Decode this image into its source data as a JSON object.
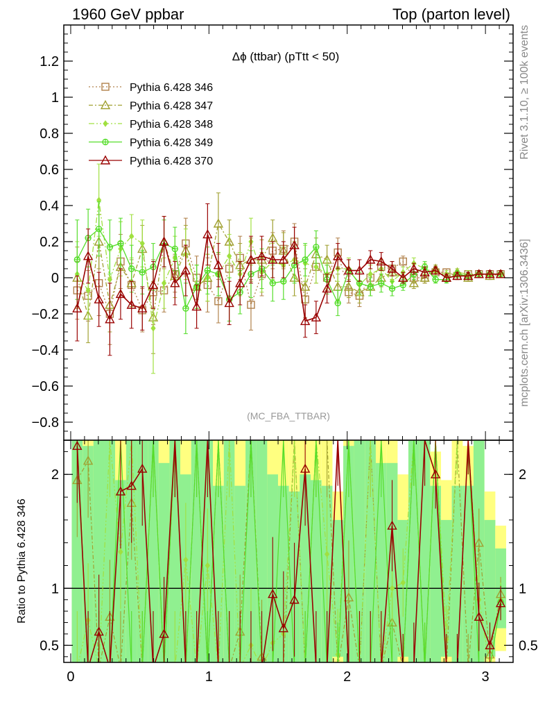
{
  "header": {
    "left": "1960 GeV ppbar",
    "right": "Top (parton level)"
  },
  "side_labels": {
    "rivet": "Rivet 3.1.10, ≥ 100k events",
    "mcplots": "mcplots.cern.ch [arXiv:1306.3436]"
  },
  "analysis_tag": "(MC_FBA_TTBAR)",
  "chart_data": [
    {
      "type": "line",
      "title": "Δϕ (ttbar) (pTtt < 50)",
      "xlim": [
        -0.05,
        3.2
      ],
      "ylim": [
        -0.9,
        1.4
      ],
      "yticks": [
        -0.8,
        -0.6,
        -0.4,
        -0.2,
        0,
        0.2,
        0.4,
        0.6,
        0.8,
        1,
        1.2
      ],
      "ytick_labels": [
        "−0.8",
        "−0.6",
        "−0.4",
        "−0.2",
        "0",
        "0.2",
        "0.4",
        "0.6",
        "0.8",
        "1",
        "1.2"
      ],
      "legend_placement": "top-left",
      "x": [
        0.047,
        0.126,
        0.204,
        0.283,
        0.361,
        0.44,
        0.518,
        0.597,
        0.675,
        0.754,
        0.832,
        0.911,
        0.99,
        1.068,
        1.147,
        1.225,
        1.304,
        1.382,
        1.461,
        1.539,
        1.618,
        1.696,
        1.775,
        1.854,
        1.932,
        2.011,
        2.089,
        2.168,
        2.246,
        2.325,
        2.404,
        2.482,
        2.561,
        2.639,
        2.718,
        2.796,
        2.875,
        2.953,
        3.032,
        3.11
      ],
      "series": [
        {
          "name": "Pythia 6.428 346",
          "color": "#b0804a",
          "marker": "square-open",
          "values": [
            -0.07,
            -0.1,
            -0.03,
            -0.2,
            0.09,
            -0.04,
            -0.18,
            -0.08,
            -0.07,
            0.02,
            0.19,
            0.0,
            -0.04,
            -0.13,
            0.05,
            0.11,
            -0.15,
            0.02,
            0.15,
            0.16,
            0.2,
            -0.12,
            0.06,
            0.0,
            0.14,
            -0.08,
            -0.1,
            0.0,
            0.06,
            0.05,
            0.09,
            0.0,
            0.0,
            0.03,
            0.03,
            0.01,
            0.02,
            0.02,
            0.02,
            0.02
          ],
          "err": [
            0.16,
            0.14,
            0.18,
            0.17,
            0.15,
            0.12,
            0.12,
            0.18,
            0.12,
            0.1,
            0.14,
            0.12,
            0.15,
            0.12,
            0.15,
            0.12,
            0.14,
            0.12,
            0.1,
            0.1,
            0.1,
            0.1,
            0.09,
            0.07,
            0.08,
            0.06,
            0.06,
            0.05,
            0.04,
            0.04,
            0.03,
            0.03,
            0.03,
            0.02,
            0.02,
            0.02,
            0.02,
            0.02,
            0.02,
            0.02
          ]
        },
        {
          "name": "Pythia 6.428 347",
          "color": "#a0a030",
          "marker": "triangle-open",
          "values": [
            0.0,
            -0.21,
            0.2,
            -0.15,
            0.06,
            -0.03,
            0.16,
            -0.22,
            0.2,
            0.01,
            0.15,
            -0.05,
            0.0,
            0.3,
            0.2,
            0.07,
            0.1,
            0.1,
            0.22,
            0.15,
            0.0,
            -0.05,
            0.13,
            0.1,
            -0.05,
            -0.05,
            -0.08,
            -0.05,
            0.0,
            0.03,
            0.0,
            -0.03,
            0.0,
            0.05,
            0.0,
            0.03,
            0.0,
            0.02,
            0.01,
            0.02
          ],
          "err": [
            0.17,
            0.15,
            0.15,
            0.15,
            0.14,
            0.13,
            0.13,
            0.2,
            0.14,
            0.12,
            0.14,
            0.12,
            0.13,
            0.17,
            0.12,
            0.12,
            0.12,
            0.11,
            0.1,
            0.1,
            0.1,
            0.1,
            0.09,
            0.08,
            0.07,
            0.06,
            0.06,
            0.05,
            0.05,
            0.04,
            0.03,
            0.03,
            0.03,
            0.02,
            0.02,
            0.02,
            0.02,
            0.02,
            0.02,
            0.02
          ]
        },
        {
          "name": "Pythia 6.428 348",
          "color": "#a0e040",
          "marker": "diamond",
          "values": [
            0.02,
            -0.07,
            0.43,
            -0.01,
            0.16,
            0.23,
            0.19,
            -0.28,
            -0.03,
            0.11,
            0.13,
            -0.05,
            0.0,
            0.02,
            0.12,
            0.02,
            0.2,
            0.03,
            0.09,
            0.07,
            0.1,
            0.08,
            0.06,
            0.02,
            0.05,
            0.05,
            -0.04,
            0.02,
            0.05,
            -0.02,
            0.03,
            0.08,
            0.05,
            0.03,
            0.02,
            0.03,
            0.02,
            0.02,
            0.02,
            0.02
          ],
          "err": [
            0.18,
            0.16,
            0.2,
            0.16,
            0.15,
            0.12,
            0.13,
            0.25,
            0.14,
            0.12,
            0.14,
            0.12,
            0.13,
            0.12,
            0.12,
            0.12,
            0.13,
            0.11,
            0.1,
            0.1,
            0.1,
            0.1,
            0.09,
            0.08,
            0.07,
            0.06,
            0.06,
            0.05,
            0.05,
            0.04,
            0.03,
            0.03,
            0.03,
            0.02,
            0.02,
            0.02,
            0.02,
            0.02,
            0.02,
            0.02
          ]
        },
        {
          "name": "Pythia 6.428 349",
          "color": "#55dd2a",
          "marker": "circle-cross",
          "values": [
            0.1,
            0.22,
            0.27,
            0.17,
            0.19,
            0.05,
            0.03,
            0.06,
            0.19,
            0.16,
            -0.17,
            -0.05,
            0.04,
            0.02,
            -0.12,
            -0.08,
            0.02,
            0.05,
            -0.03,
            -0.02,
            0.07,
            0.1,
            0.17,
            -0.01,
            -0.14,
            0.04,
            -0.03,
            -0.05,
            -0.03,
            -0.06,
            -0.04,
            0.02,
            0.06,
            -0.01,
            -0.01,
            0.02,
            0.01,
            0.02,
            0.02,
            0.02
          ],
          "err": [
            0.22,
            0.16,
            0.15,
            0.15,
            0.14,
            0.13,
            0.12,
            0.13,
            0.13,
            0.12,
            0.14,
            0.12,
            0.13,
            0.12,
            0.12,
            0.12,
            0.13,
            0.11,
            0.1,
            0.1,
            0.1,
            0.09,
            0.09,
            0.08,
            0.07,
            0.06,
            0.06,
            0.05,
            0.05,
            0.04,
            0.03,
            0.03,
            0.03,
            0.02,
            0.02,
            0.02,
            0.02,
            0.02,
            0.02,
            0.02
          ]
        },
        {
          "name": "Pythia 6.428 370",
          "color": "#990000",
          "marker": "triangle-open",
          "values": [
            -0.17,
            0.12,
            -0.12,
            -0.23,
            -0.09,
            -0.15,
            -0.17,
            -0.04,
            0.2,
            -0.03,
            0.04,
            -0.16,
            0.24,
            0.07,
            -0.14,
            -0.03,
            0.1,
            0.12,
            0.1,
            0.1,
            0.18,
            -0.24,
            -0.22,
            -0.06,
            0.12,
            0.04,
            0.04,
            0.1,
            0.09,
            0.05,
            0.0,
            0.05,
            0.03,
            0.04,
            0.0,
            0.01,
            0.01,
            0.02,
            0.02,
            0.02
          ],
          "err": [
            0.18,
            0.15,
            0.15,
            0.2,
            0.14,
            0.13,
            0.12,
            0.13,
            0.14,
            0.12,
            0.14,
            0.12,
            0.17,
            0.12,
            0.12,
            0.12,
            0.13,
            0.11,
            0.1,
            0.1,
            0.1,
            0.09,
            0.09,
            0.08,
            0.07,
            0.06,
            0.06,
            0.05,
            0.05,
            0.04,
            0.03,
            0.03,
            0.03,
            0.02,
            0.02,
            0.02,
            0.02,
            0.02,
            0.02,
            0.02
          ]
        }
      ]
    },
    {
      "type": "line",
      "ylabel": "Ratio to Pythia 6.428 346",
      "xlim": [
        -0.05,
        3.2
      ],
      "ylim": [
        0.35,
        2.3
      ],
      "reference_line": 1,
      "xticks": [
        0,
        1,
        2,
        3
      ],
      "xtick_labels": [
        "0",
        "1",
        "2",
        "3"
      ],
      "yticks": [
        0.5,
        1,
        2
      ],
      "ytick_labels": [
        "0.5",
        "1",
        "2"
      ],
      "band_outer_color": "#ffff80",
      "band_inner_color": "#90f090",
      "band_outer_halfwidth": [
        2.0,
        2.0,
        2.0,
        2.0,
        1.55,
        2.0,
        2.0,
        2.0,
        1.6,
        2.0,
        1.55,
        2.0,
        2.0,
        1.45,
        2.0,
        1.5,
        2.0,
        2.0,
        2.0,
        1.9,
        1.55,
        1.6,
        2.0,
        1.55,
        0.85,
        2.0,
        2.0,
        2.0,
        2.0,
        1.8,
        1.0,
        2.0,
        1.9,
        1.2,
        0.95,
        1.3,
        1.25,
        1.9,
        0.85,
        0.55
      ],
      "band_inner_halfwidth": [
        1.4,
        1.25,
        1.6,
        1.6,
        0.95,
        1.6,
        1.6,
        1.65,
        1.1,
        1.3,
        1.0,
        1.55,
        1.3,
        0.9,
        1.5,
        0.9,
        1.35,
        1.4,
        1.0,
        0.9,
        0.85,
        1.0,
        0.95,
        0.9,
        0.6,
        1.25,
        1.3,
        1.3,
        1.1,
        1.1,
        0.6,
        1.3,
        1.3,
        0.9,
        0.6,
        0.9,
        0.9,
        1.3,
        0.6,
        0.35
      ],
      "series": [
        {
          "name": "Pythia 6.428 347",
          "color": "#a0a030",
          "marker": "triangle-open",
          "values": [
            1.95,
            2.12,
            0.3,
            0.75,
            0.3,
            1.75,
            0.3,
            2.3,
            0.3,
            2.3,
            0.3,
            2.3,
            0.3,
            2.3,
            0.3,
            0.62,
            2.3,
            0.4,
            0.3,
            0.3,
            2.3,
            0.3,
            2.3,
            2.3,
            0.3,
            0.92,
            0.3,
            2.3,
            0.3,
            0.7,
            0.3,
            2.3,
            0.3,
            2.3,
            0.3,
            2.3,
            0.3,
            1.4,
            0.42,
            0.95
          ],
          "err": [
            0.5,
            0.5,
            0.5,
            0.5,
            0.5,
            0.5,
            0.5,
            0.5,
            0.5,
            0.5,
            0.5,
            0.5,
            0.5,
            0.5,
            0.5,
            0.5,
            0.5,
            0.5,
            0.5,
            0.5,
            0.5,
            0.5,
            0.5,
            0.5,
            0.4,
            0.5,
            0.5,
            0.5,
            0.5,
            0.4,
            0.3,
            0.4,
            0.4,
            0.3,
            0.3,
            0.3,
            0.3,
            0.3,
            0.2,
            0.15
          ]
        },
        {
          "name": "Pythia 6.428 348",
          "color": "#a0e040",
          "marker": "diamond",
          "values": [
            0.3,
            0.72,
            0.3,
            2.3,
            1.32,
            2.3,
            0.3,
            2.3,
            0.3,
            0.3,
            1.25,
            0.3,
            1.2,
            0.3,
            2.3,
            0.3,
            0.5,
            0.3,
            0.52,
            0.6,
            2.3,
            0.3,
            2.3,
            1.3,
            0.42,
            2.3,
            0.3,
            2.3,
            0.3,
            1.0,
            1.05,
            2.3,
            0.3,
            2.3,
            0.55,
            2.3,
            2.3,
            0.9,
            0.3,
            0.9
          ],
          "err": [
            0.5,
            0.5,
            0.5,
            0.5,
            0.5,
            0.5,
            0.5,
            0.5,
            0.5,
            0.5,
            0.5,
            0.5,
            0.5,
            0.5,
            0.5,
            0.5,
            0.5,
            0.5,
            0.5,
            0.5,
            0.5,
            0.5,
            0.5,
            0.5,
            0.4,
            0.5,
            0.5,
            0.5,
            0.5,
            0.4,
            0.3,
            0.4,
            0.4,
            0.3,
            0.3,
            0.3,
            0.3,
            0.3,
            0.2,
            0.15
          ]
        },
        {
          "name": "Pythia 6.428 349",
          "color": "#55dd2a",
          "marker": "circle-cross",
          "values": [
            2.3,
            0.3,
            0.3,
            0.3,
            2.3,
            0.3,
            0.3,
            2.3,
            0.3,
            2.3,
            0.3,
            2.3,
            0.3,
            2.3,
            0.3,
            0.3,
            2.3,
            0.3,
            0.3,
            2.3,
            0.3,
            0.3,
            2.3,
            0.3,
            0.3,
            2.3,
            0.3,
            0.3,
            2.3,
            0.3,
            0.3,
            2.3,
            0.3,
            2.3,
            0.3,
            0.3,
            2.3,
            0.3,
            0.3,
            0.88
          ],
          "err": [
            0.5,
            0.5,
            0.5,
            0.5,
            0.5,
            0.5,
            0.5,
            0.5,
            0.5,
            0.5,
            0.5,
            0.5,
            0.5,
            0.5,
            0.5,
            0.5,
            0.5,
            0.5,
            0.5,
            0.5,
            0.5,
            0.5,
            0.5,
            0.5,
            0.4,
            0.5,
            0.5,
            0.5,
            0.5,
            0.4,
            0.3,
            0.4,
            0.4,
            0.3,
            0.3,
            0.3,
            0.3,
            0.3,
            0.2,
            0.15
          ]
        },
        {
          "name": "Pythia 6.428 370",
          "color": "#990000",
          "marker": "triangle-open",
          "values": [
            2.25,
            0.3,
            0.62,
            0.3,
            1.85,
            1.9,
            2.05,
            0.3,
            0.6,
            2.3,
            0.3,
            0.3,
            2.3,
            0.3,
            0.3,
            0.3,
            0.3,
            0.3,
            0.95,
            0.65,
            0.9,
            2.05,
            0.3,
            0.3,
            2.3,
            0.3,
            0.3,
            0.3,
            0.3,
            1.55,
            0.3,
            0.3,
            2.3,
            2.0,
            0.3,
            0.3,
            2.3,
            0.75,
            0.5,
            0.87
          ],
          "err": [
            0.5,
            0.5,
            0.5,
            0.5,
            0.5,
            0.5,
            0.5,
            0.5,
            0.5,
            0.5,
            0.5,
            0.5,
            0.5,
            0.5,
            0.5,
            0.5,
            0.5,
            0.5,
            0.5,
            0.5,
            0.5,
            0.5,
            0.5,
            0.5,
            0.4,
            0.5,
            0.5,
            0.5,
            0.5,
            0.4,
            0.3,
            0.4,
            0.4,
            0.3,
            0.3,
            0.3,
            0.3,
            0.3,
            0.2,
            0.15
          ]
        }
      ]
    }
  ]
}
